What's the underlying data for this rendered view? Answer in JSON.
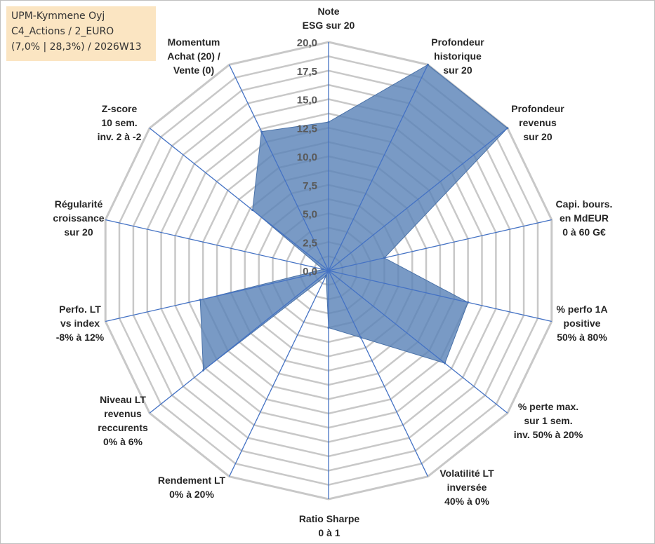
{
  "info": {
    "company": "UPM-Kymmene Oyj",
    "category": "C4_Actions / 2_EURO",
    "stats": "(7,0% | 28,3%) / 2026W13"
  },
  "chart_data": {
    "type": "radar",
    "title": "",
    "rmin": 0,
    "rmax": 20,
    "ticks": [
      "0,0",
      "2,5",
      "5,0",
      "7,5",
      "10,0",
      "12,5",
      "15,0",
      "17,5",
      "20,0"
    ],
    "axes": [
      [
        "Note",
        "ESG sur 20"
      ],
      [
        "Profondeur",
        "historique",
        "sur 20"
      ],
      [
        "Profondeur",
        "revenus",
        "sur 20"
      ],
      [
        "Capi. bours.",
        "en MdEUR",
        "0 à 60 G€"
      ],
      [
        "% perfo 1A",
        "positive",
        "50% à 80%"
      ],
      [
        "% perte max.",
        "sur 1 sem.",
        "inv. 50% à 20%"
      ],
      [
        "Volatilité LT",
        "inversée",
        "40% à 0%"
      ],
      [
        "Ratio Sharpe",
        "0 à 1"
      ],
      [
        "Rendement LT",
        "0% à 20%"
      ],
      [
        "Niveau LT",
        "revenus",
        "reccurents",
        "0% à 6%"
      ],
      [
        "Perfo. LT",
        "vs index",
        "-8% à 12%"
      ],
      [
        "Régularité",
        "croissance",
        "sur 20"
      ],
      [
        "Z-score",
        "10 sem.",
        "inv. 2 à -2"
      ],
      [
        "Momentum",
        "Achat (20) /",
        "Vente (0)"
      ]
    ],
    "series": [
      {
        "name": "UPM-Kymmene Oyj",
        "color": "#5b84b8",
        "values": [
          13,
          20,
          20,
          5,
          12.5,
          13,
          6.5,
          5,
          0.5,
          14,
          11.5,
          0.5,
          8.5,
          13.5
        ]
      }
    ],
    "grid_color": "#c8c8c8",
    "axis_color": "#4472c4"
  }
}
